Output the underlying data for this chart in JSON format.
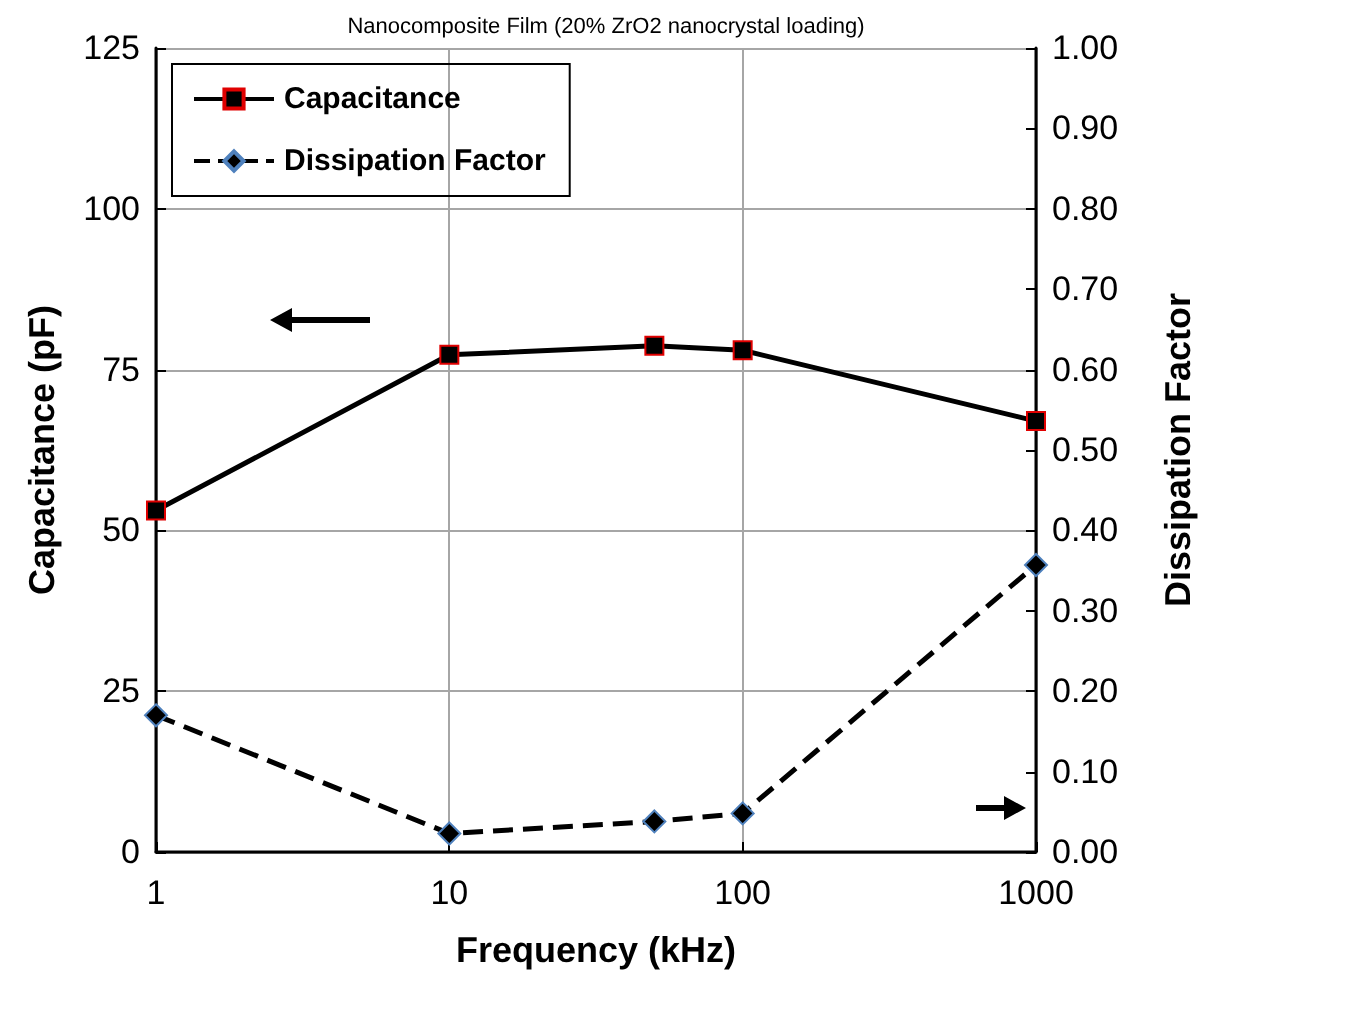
{
  "chart_data": {
    "type": "line",
    "title": "Nanocomposite Film (20% ZrO2 nanocrystal loading)",
    "xlabel": "Frequency (kHz)",
    "ylabel": "Capacitance (pF)",
    "y2label": "Dissipation Factor",
    "x": [
      1,
      10,
      50,
      100,
      1000
    ],
    "series": [
      {
        "name": "Capacitance",
        "color": "#000000",
        "values": [
          53.1,
          77.3,
          78.7,
          78.0,
          67.0
        ],
        "marker": "square",
        "line_style": "solid"
      },
      {
        "name": "Dissipation Factor",
        "color": "#000000",
        "values": [
          0.17,
          0.023,
          0.038,
          0.048,
          0.357
        ],
        "marker": "diamond",
        "line_style": "dashed",
        "axis": "y2"
      }
    ],
    "log": "x",
    "xlim": [
      1,
      1000
    ],
    "xticks": [
      1,
      10,
      100,
      1000
    ],
    "ylim": [
      0,
      125
    ],
    "yticks": [
      0,
      25,
      50,
      75,
      100,
      125
    ],
    "y2lim": [
      0,
      1
    ],
    "y2ticks": [
      {
        "value": 0,
        "label": "0.00"
      },
      {
        "value": 0.1,
        "label": "0.10"
      },
      {
        "value": 0.2,
        "label": "0.20"
      },
      {
        "value": 0.3,
        "label": "0.30"
      },
      {
        "value": 0.4,
        "label": "0.40"
      },
      {
        "value": 0.5,
        "label": "0.50"
      },
      {
        "value": 0.6,
        "label": "0.60"
      },
      {
        "value": 0.7,
        "label": "0.70"
      },
      {
        "value": 0.8,
        "label": "0.80"
      },
      {
        "value": 0.9,
        "label": "0.90"
      },
      {
        "value": 1,
        "label": "1.00"
      }
    ],
    "grid": true,
    "legend": "top left"
  }
}
